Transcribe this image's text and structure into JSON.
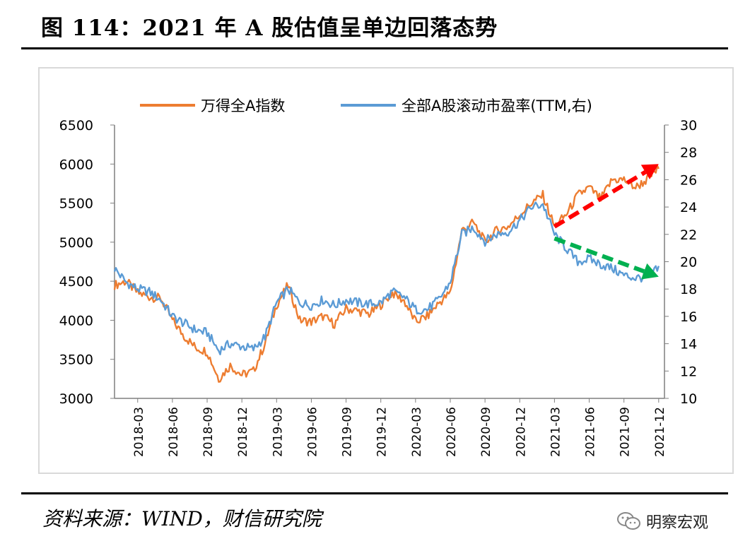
{
  "figure_title": "图 114：2021 年 A 股估值呈单边回落态势",
  "source_note": "资料来源：WIND，财信研究院",
  "watermark": {
    "icon": "wechat-icon",
    "text": "明察宏观"
  },
  "chart_data": {
    "type": "line",
    "grid": false,
    "legend_position": "top",
    "x_ticks": [
      "2018-03",
      "2018-06",
      "2018-09",
      "2018-12",
      "2019-03",
      "2019-06",
      "2019-09",
      "2019-12",
      "2020-03",
      "2020-06",
      "2020-09",
      "2020-12",
      "2021-03",
      "2021-06",
      "2021-09",
      "2021-12"
    ],
    "y_left": {
      "min": 3000,
      "max": 6500,
      "ticks": [
        3000,
        3500,
        4000,
        4500,
        5000,
        5500,
        6000,
        6500
      ]
    },
    "y_right": {
      "min": 10,
      "max": 30,
      "ticks": [
        10,
        12,
        14,
        16,
        18,
        20,
        22,
        24,
        26,
        28,
        30
      ]
    },
    "series": [
      {
        "name": "万得全A指数",
        "axis": "left",
        "color": "#ed7d31",
        "x": [
          "2018-01",
          "2018-02",
          "2018-03",
          "2018-04",
          "2018-05",
          "2018-06",
          "2018-07",
          "2018-08",
          "2018-09",
          "2018-10",
          "2018-11",
          "2018-12",
          "2019-01",
          "2019-02",
          "2019-03",
          "2019-04",
          "2019-05",
          "2019-06",
          "2019-07",
          "2019-08",
          "2019-09",
          "2019-10",
          "2019-11",
          "2019-12",
          "2020-01",
          "2020-02",
          "2020-03",
          "2020-04",
          "2020-05",
          "2020-06",
          "2020-07",
          "2020-08",
          "2020-09",
          "2020-10",
          "2020-11",
          "2020-12",
          "2021-01",
          "2021-02",
          "2021-03",
          "2021-04",
          "2021-05",
          "2021-06",
          "2021-07",
          "2021-08",
          "2021-09",
          "2021-10",
          "2021-11",
          "2021-12"
        ],
        "values": [
          4450,
          4500,
          4350,
          4300,
          4280,
          4000,
          3800,
          3650,
          3600,
          3250,
          3420,
          3300,
          3350,
          3700,
          4200,
          4450,
          4000,
          3980,
          4050,
          3950,
          4150,
          4120,
          4080,
          4200,
          4350,
          4250,
          3980,
          4050,
          4220,
          4350,
          5150,
          5250,
          5000,
          5150,
          5200,
          5350,
          5500,
          5600,
          5200,
          5350,
          5600,
          5700,
          5550,
          5800,
          5800,
          5700,
          5800,
          5950
        ]
      },
      {
        "name": "全部A股滚动市盈率(TTM,右)",
        "axis": "right",
        "color": "#5b9bd5",
        "x": [
          "2018-01",
          "2018-02",
          "2018-03",
          "2018-04",
          "2018-05",
          "2018-06",
          "2018-07",
          "2018-08",
          "2018-09",
          "2018-10",
          "2018-11",
          "2018-12",
          "2019-01",
          "2019-02",
          "2019-03",
          "2019-04",
          "2019-05",
          "2019-06",
          "2019-07",
          "2019-08",
          "2019-09",
          "2019-10",
          "2019-11",
          "2019-12",
          "2020-01",
          "2020-02",
          "2020-03",
          "2020-04",
          "2020-05",
          "2020-06",
          "2020-07",
          "2020-08",
          "2020-09",
          "2020-10",
          "2020-11",
          "2020-12",
          "2021-01",
          "2021-02",
          "2021-03",
          "2021-04",
          "2021-05",
          "2021-06",
          "2021-07",
          "2021-08",
          "2021-09",
          "2021-10",
          "2021-11",
          "2021-12"
        ],
        "values": [
          19.5,
          18.5,
          18.0,
          17.8,
          17.2,
          16.0,
          15.5,
          15.0,
          14.8,
          13.5,
          14.0,
          13.8,
          13.6,
          14.5,
          17.0,
          18.0,
          17.0,
          16.8,
          17.2,
          16.8,
          17.2,
          17.0,
          16.9,
          17.0,
          17.8,
          17.4,
          16.5,
          16.5,
          17.2,
          18.5,
          22.0,
          22.5,
          21.5,
          22.0,
          22.2,
          23.0,
          24.0,
          24.2,
          22.0,
          21.0,
          20.0,
          20.2,
          19.8,
          19.5,
          19.0,
          18.8,
          18.9,
          19.5
        ]
      }
    ],
    "annotations": [
      {
        "type": "trend-arrow",
        "color": "#ff0000",
        "axis": "left",
        "from": [
          "2021-03",
          5200
        ],
        "to": [
          "2021-12",
          6000
        ]
      },
      {
        "type": "trend-arrow",
        "color": "#00b050",
        "axis": "right",
        "from": [
          "2021-03",
          21.7
        ],
        "to": [
          "2021-12",
          18.9
        ]
      }
    ]
  }
}
